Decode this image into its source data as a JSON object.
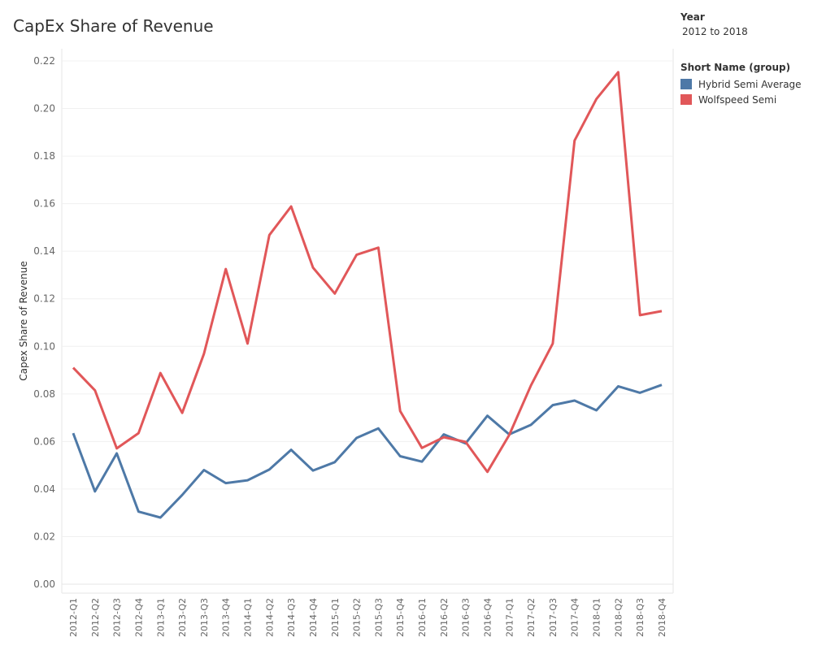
{
  "chart_data": {
    "type": "line",
    "title": "CapEx Share of Revenue",
    "xlabel": "",
    "ylabel": "Capex Share of Revenue",
    "ylim": [
      0,
      0.225
    ],
    "yticks": [
      "0.00",
      "0.02",
      "0.04",
      "0.06",
      "0.08",
      "0.10",
      "0.12",
      "0.14",
      "0.16",
      "0.18",
      "0.20",
      "0.22"
    ],
    "grid": true,
    "legend_position": "top-right",
    "x": [
      "2012-Q1",
      "2012-Q2",
      "2012-Q3",
      "2012-Q4",
      "2013-Q1",
      "2013-Q2",
      "2013-Q3",
      "2013-Q4",
      "2014-Q1",
      "2014-Q2",
      "2014-Q3",
      "2014-Q4",
      "2015-Q1",
      "2015-Q2",
      "2015-Q3",
      "2015-Q4",
      "2016-Q1",
      "2016-Q2",
      "2016-Q3",
      "2016-Q4",
      "2017-Q1",
      "2017-Q2",
      "2017-Q3",
      "2017-Q4",
      "2018-Q1",
      "2018-Q2",
      "2018-Q3",
      "2018-Q4"
    ],
    "series": [
      {
        "name": "Hybrid Semi Average",
        "color": "#4e79a7",
        "values": [
          0.0635,
          0.039,
          0.055,
          0.0305,
          0.028,
          0.0375,
          0.048,
          0.0425,
          0.0437,
          0.0482,
          0.0565,
          0.0478,
          0.0513,
          0.0615,
          0.0655,
          0.0538,
          0.0515,
          0.063,
          0.0592,
          0.0708,
          0.063,
          0.067,
          0.0753,
          0.0772,
          0.0731,
          0.0832,
          0.0805,
          0.0838
        ]
      },
      {
        "name": "Wolfspeed Semi",
        "color": "#e15759",
        "values": [
          0.091,
          0.0815,
          0.0571,
          0.0635,
          0.0888,
          0.072,
          0.0969,
          0.1325,
          0.1012,
          0.1468,
          0.1588,
          0.1331,
          0.1222,
          0.1385,
          0.1415,
          0.0728,
          0.0573,
          0.0618,
          0.0598,
          0.0472,
          0.0627,
          0.0836,
          0.1012,
          0.1865,
          0.204,
          0.2153,
          0.1131,
          0.1148
        ]
      }
    ]
  },
  "legend": {
    "filter_title": "Year",
    "filter_value": "2012 to 2018",
    "group_title": "Short Name (group)"
  }
}
